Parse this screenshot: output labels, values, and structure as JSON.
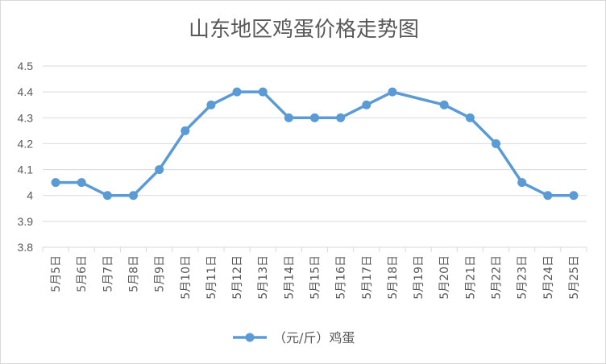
{
  "chart_data": {
    "type": "line",
    "title": "山东地区鸡蛋价格走势图",
    "xlabel": "",
    "ylabel": "",
    "categories": [
      "5月5日",
      "5月6日",
      "5月7日",
      "5月8日",
      "5月9日",
      "5月10日",
      "5月11日",
      "5月12日",
      "5月13日",
      "5月14日",
      "5月15日",
      "5月16日",
      "5月17日",
      "5月18日",
      "5月19日",
      "5月20日",
      "5月21日",
      "5月22日",
      "5月23日",
      "5月24日",
      "5月25日"
    ],
    "series": [
      {
        "name": "（元/斤）鸡蛋",
        "color": "#5b9bd5",
        "values": [
          4.05,
          4.05,
          4.0,
          4.0,
          4.1,
          4.25,
          4.35,
          4.4,
          4.4,
          4.3,
          4.3,
          4.3,
          4.35,
          4.4,
          null,
          4.35,
          4.3,
          4.2,
          4.05,
          4.0,
          4.0
        ]
      }
    ],
    "ylim": [
      3.8,
      4.5
    ],
    "yticks": [
      "3.8",
      "3.9",
      "4",
      "4.1",
      "4.2",
      "4.3",
      "4.4",
      "4.5"
    ],
    "grid": true,
    "legend": "bottom"
  },
  "colors": {
    "series": "#5b9bd5",
    "grid": "#d9d9d9",
    "text": "#595959"
  }
}
